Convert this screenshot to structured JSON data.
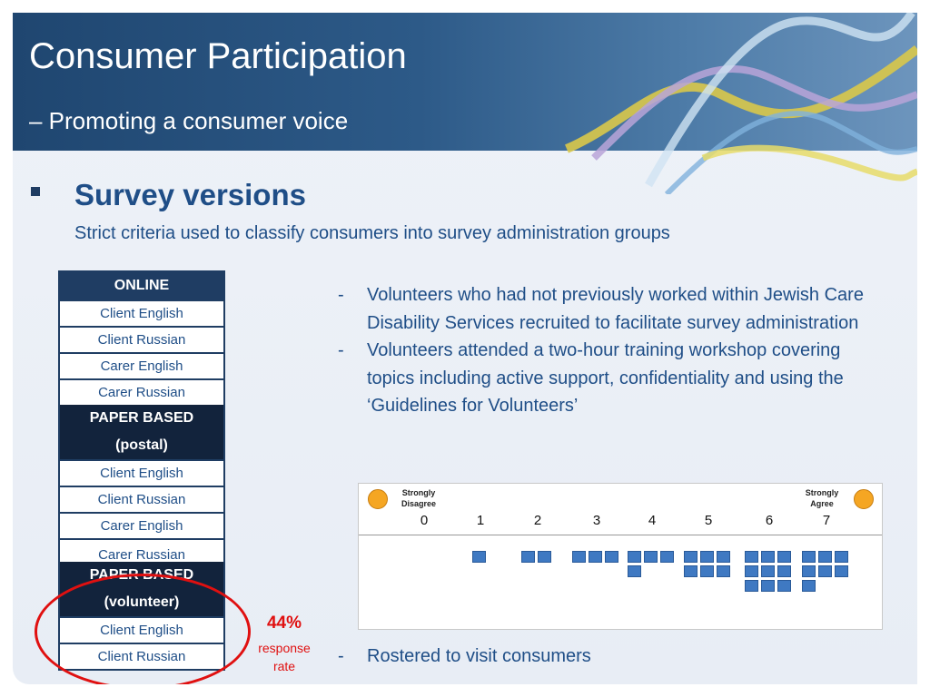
{
  "slide": {
    "title": "Consumer Participation",
    "subtitle": "– Promoting a consumer voice"
  },
  "section": {
    "heading": "Survey versions",
    "subheading": "Strict criteria used to classify consumers into survey administration groups"
  },
  "groups": {
    "online": {
      "header": "ONLINE",
      "rows": [
        "Client English",
        "Client Russian",
        "Carer English",
        "Carer Russian"
      ]
    },
    "postal": {
      "header_line1": "PAPER BASED",
      "header_line2": "(postal)",
      "rows": [
        "Client English",
        "Client Russian",
        "Carer English",
        "Carer Russian"
      ]
    },
    "volunteer": {
      "header_line1": "PAPER BASED",
      "header_line2": "(volunteer)",
      "rows": [
        "Client English",
        "Client Russian"
      ]
    }
  },
  "response": {
    "percent": "44%",
    "label_line1": "response",
    "label_line2": "rate"
  },
  "points": [
    "Volunteers who had not previously worked within Jewish Care Disability Services recruited to facilitate survey administration",
    "Volunteers attended a two-hour training workshop covering topics including active support, confidentiality and using the ‘Guidelines for Volunteers’",
    "Rostered to visit consumers"
  ],
  "dash": "-",
  "scale": {
    "left_anchor_line1": "Strongly",
    "left_anchor_line2": "Disagree",
    "right_anchor_line1": "Strongly",
    "right_anchor_line2": "Agree",
    "numbers": [
      "0",
      "1",
      "2",
      "3",
      "4",
      "5",
      "6",
      "7"
    ],
    "square_counts": [
      0,
      1,
      2,
      3,
      4,
      6,
      9,
      7
    ],
    "square_color": "#3f79c2"
  },
  "colors": {
    "accent_blue": "#1f4e87",
    "header_dark": "#1f3d63",
    "highlight_red": "#e01010"
  }
}
